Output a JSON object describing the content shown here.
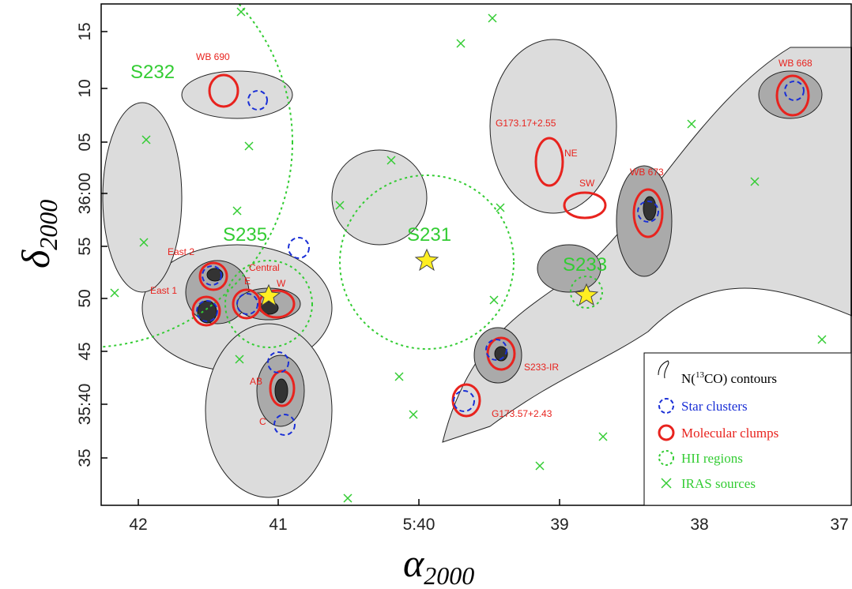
{
  "axes": {
    "x_label": {
      "symbol": "α",
      "sub": "2000"
    },
    "y_label": {
      "symbol": "δ",
      "sub": "2000"
    },
    "xticks": [
      "42",
      "41",
      "5:40",
      "39",
      "38",
      "37"
    ],
    "yticks": [
      "15",
      "10",
      "05",
      "36:00",
      "55",
      "50",
      "45",
      "35:40",
      "35"
    ]
  },
  "regions": [
    "S232",
    "S235",
    "S231",
    "S233"
  ],
  "clumps": [
    "WB 690",
    "G173.17+2.55",
    "NE",
    "SW",
    "WB 673",
    "WB 668",
    "East 2",
    "Central",
    "East 1",
    "E",
    "W",
    "AB",
    "C",
    "S233-IR",
    "G173.57+2.43"
  ],
  "legend": {
    "contours": {
      "pre": "N(",
      "sup": "13",
      "post": "CO) contours"
    },
    "clusters": "Star clusters",
    "clumps": "Molecular clumps",
    "hii": "HII regions",
    "iras": "IRAS sources"
  }
}
